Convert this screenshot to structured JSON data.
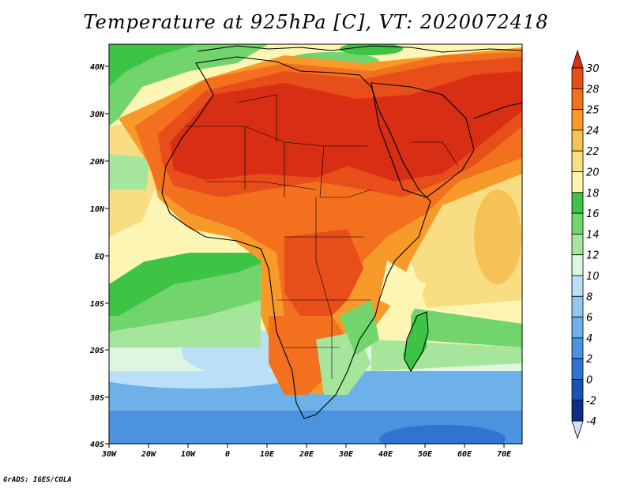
{
  "title": "Temperature at 925hPa [C], VT: 2020072418",
  "credit": "GrADS: IGES/COLA",
  "axes": {
    "lat_ticks": [
      "40N",
      "30N",
      "20N",
      "10N",
      "EQ",
      "10S",
      "20S",
      "30S",
      "40S"
    ],
    "lon_ticks": [
      "30W",
      "20W",
      "10W",
      "0",
      "10E",
      "20E",
      "30E",
      "40E",
      "50E",
      "60E",
      "70E"
    ]
  },
  "colorbar": {
    "levels": [
      "30",
      "28",
      "25",
      "24",
      "22",
      "20",
      "18",
      "16",
      "14",
      "12",
      "10",
      "8",
      "6",
      "4",
      "2",
      "0",
      "-2",
      "-4"
    ],
    "colors": [
      "#d72e14",
      "#e84e1a",
      "#f2701e",
      "#f89a2a",
      "#f7c255",
      "#f8dd82",
      "#fcf5b4",
      "#3ec444",
      "#72d46c",
      "#a6e59c",
      "#ddf6e0",
      "#b9e0f6",
      "#92c8ef",
      "#6eb0e8",
      "#4b93df",
      "#2f74d3",
      "#1a52b8",
      "#0f2d88",
      "#d8ddfb"
    ]
  },
  "map_colors": {
    "hot": "#d72e14",
    "warm": "#e84e1a",
    "orange": "#f2701e",
    "lightorange": "#f89a2a",
    "yellow": "#f8dd82",
    "paleyellow": "#fcf5b4",
    "green": "#3ec444",
    "lightgreen": "#72d46c",
    "palegreen": "#a6e59c",
    "cyan": "#ddf6e0",
    "lightblue": "#b9e0f6",
    "blue": "#6eb0e8",
    "darkblue": "#2f74d3"
  }
}
